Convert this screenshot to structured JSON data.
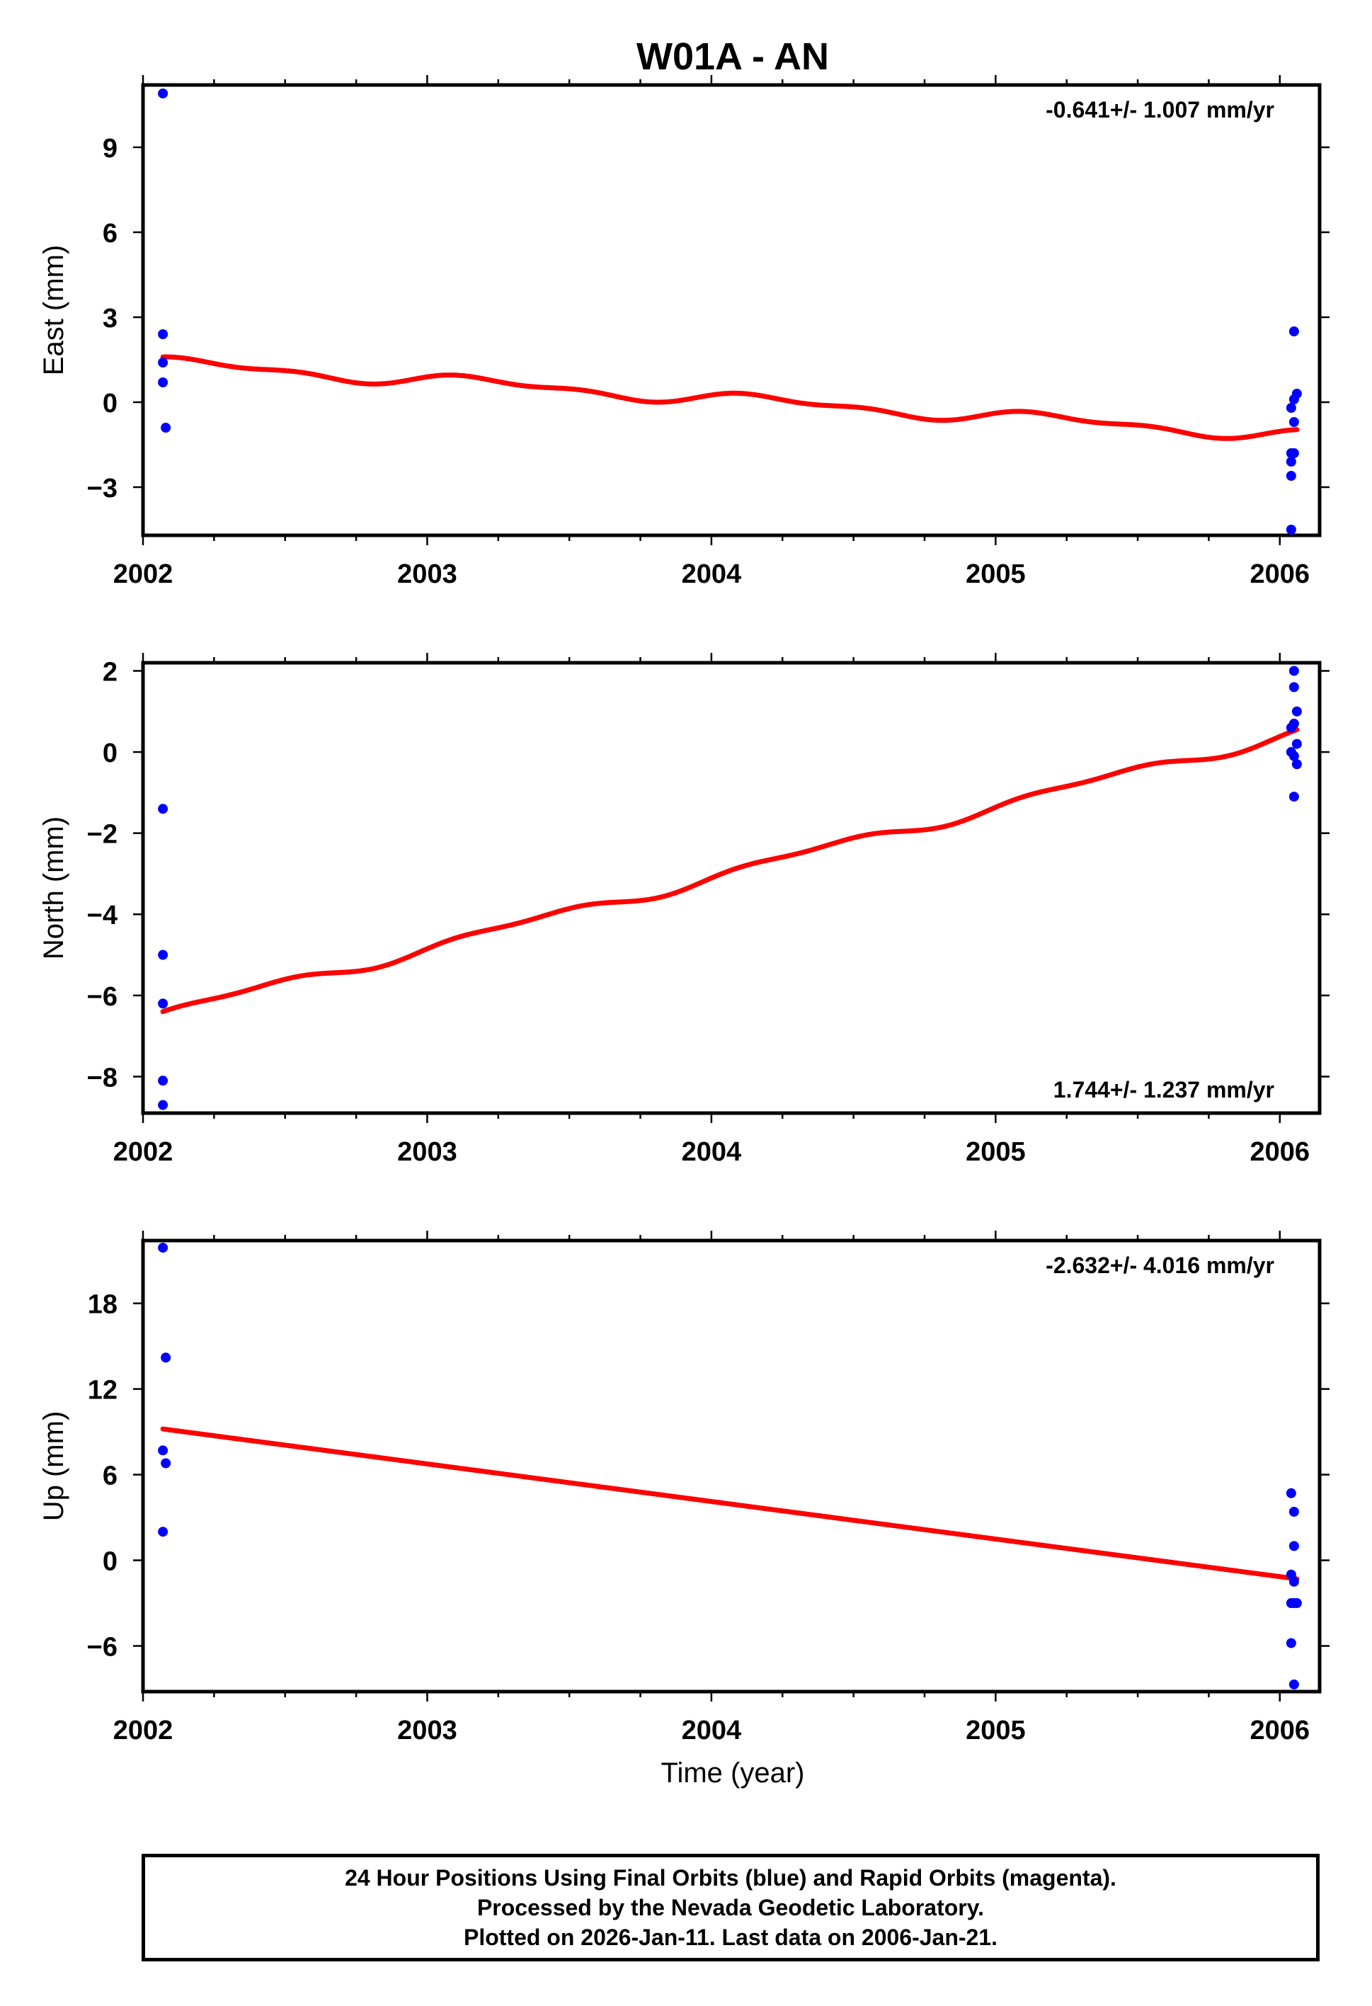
{
  "title": "W01A - AN",
  "x_axis": {
    "label": "Time (year)",
    "range": [
      2002.0,
      2006.14
    ],
    "ticks": [
      2002,
      2003,
      2004,
      2005,
      2006
    ],
    "tick_labels": [
      "2002",
      "2003",
      "2004",
      "2005",
      "2006"
    ]
  },
  "chart_data": [
    {
      "type": "scatter",
      "panel": "east",
      "ylabel": "East (mm)",
      "ylim": [
        -4.7,
        11.2
      ],
      "yticks": [
        -3,
        0,
        3,
        6,
        9
      ],
      "ytick_labels": [
        "−3",
        "0",
        "3",
        "6",
        "9"
      ],
      "rate_label": "-0.641+/- 1.007 mm/yr",
      "rate_position": "top-right",
      "series": [
        {
          "name": "Final Orbits",
          "color": "#0000ff",
          "points": [
            [
              2002.07,
              10.9
            ],
            [
              2002.07,
              2.4
            ],
            [
              2002.07,
              1.4
            ],
            [
              2002.07,
              0.7
            ],
            [
              2002.08,
              -0.9
            ],
            [
              2006.04,
              -4.5
            ],
            [
              2006.04,
              -2.6
            ],
            [
              2006.04,
              -2.1
            ],
            [
              2006.04,
              -1.8
            ],
            [
              2006.04,
              -0.2
            ],
            [
              2006.05,
              2.5
            ],
            [
              2006.05,
              0.1
            ],
            [
              2006.05,
              -0.7
            ],
            [
              2006.05,
              -1.8
            ],
            [
              2006.06,
              0.3
            ]
          ]
        },
        {
          "name": "Model fit",
          "color": "#ff0000",
          "model": {
            "offset": 1.46,
            "slope": -0.641,
            "t0": 2002.07,
            "t1": 2006.06,
            "sin_amp": 0.18,
            "cos_amp": 0.05,
            "semi_sin": 0.08,
            "semi_cos": 0.07
          }
        }
      ]
    },
    {
      "type": "scatter",
      "panel": "north",
      "ylabel": "North (mm)",
      "ylim": [
        -8.9,
        2.2
      ],
      "yticks": [
        -8,
        -6,
        -4,
        -2,
        0,
        2
      ],
      "ytick_labels": [
        "−8",
        "−6",
        "−4",
        "−2",
        "0",
        "2"
      ],
      "rate_label": "1.744+/- 1.237 mm/yr",
      "rate_position": "bottom-right",
      "series": [
        {
          "name": "Final Orbits",
          "color": "#0000ff",
          "points": [
            [
              2002.07,
              -1.4
            ],
            [
              2002.07,
              -5.0
            ],
            [
              2002.07,
              -6.2
            ],
            [
              2002.07,
              -8.1
            ],
            [
              2002.07,
              -8.7
            ],
            [
              2006.04,
              0.6
            ],
            [
              2006.04,
              0.0
            ],
            [
              2006.05,
              2.0
            ],
            [
              2006.05,
              1.6
            ],
            [
              2006.05,
              0.7
            ],
            [
              2006.05,
              -0.1
            ],
            [
              2006.06,
              1.0
            ],
            [
              2006.06,
              0.2
            ],
            [
              2006.06,
              -0.3
            ],
            [
              2006.05,
              -1.1
            ]
          ]
        },
        {
          "name": "Model fit",
          "color": "#ff0000",
          "model": {
            "offset": -6.48,
            "slope": 1.744,
            "t0": 2002.07,
            "t1": 2006.06,
            "sin_amp": 0.1,
            "cos_amp": -0.06,
            "semi_sin": 0.05,
            "semi_cos": 0.04
          }
        }
      ]
    },
    {
      "type": "scatter",
      "panel": "up",
      "ylabel": "Up (mm)",
      "ylim": [
        -9.2,
        22.4
      ],
      "yticks": [
        -6,
        0,
        6,
        12,
        18
      ],
      "ytick_labels": [
        "−6",
        "0",
        "6",
        "12",
        "18"
      ],
      "rate_label": "-2.632+/- 4.016 mm/yr",
      "rate_position": "top-right",
      "series": [
        {
          "name": "Final Orbits",
          "color": "#0000ff",
          "points": [
            [
              2002.07,
              21.9
            ],
            [
              2002.08,
              14.2
            ],
            [
              2002.07,
              7.7
            ],
            [
              2002.08,
              6.8
            ],
            [
              2002.07,
              2.0
            ],
            [
              2006.04,
              4.7
            ],
            [
              2006.05,
              3.4
            ],
            [
              2006.05,
              1.0
            ],
            [
              2006.04,
              -1.0
            ],
            [
              2006.05,
              -1.5
            ],
            [
              2006.04,
              -3.0
            ],
            [
              2006.05,
              -3.0
            ],
            [
              2006.06,
              -3.0
            ],
            [
              2006.04,
              -5.8
            ],
            [
              2006.05,
              -8.7
            ]
          ]
        },
        {
          "name": "Model fit",
          "color": "#ff0000",
          "model": {
            "offset": 9.2,
            "slope": -2.632,
            "t0": 2002.07,
            "t1": 2006.06,
            "sin_amp": 0,
            "cos_amp": 0,
            "semi_sin": 0,
            "semi_cos": 0
          }
        }
      ]
    }
  ],
  "footer": {
    "line1": "24 Hour Positions Using Final Orbits (blue) and Rapid Orbits (magenta).",
    "line2": "Processed by the Nevada Geodetic Laboratory.",
    "line3": "Plotted on 2026-Jan-11. Last data on 2006-Jan-21."
  }
}
